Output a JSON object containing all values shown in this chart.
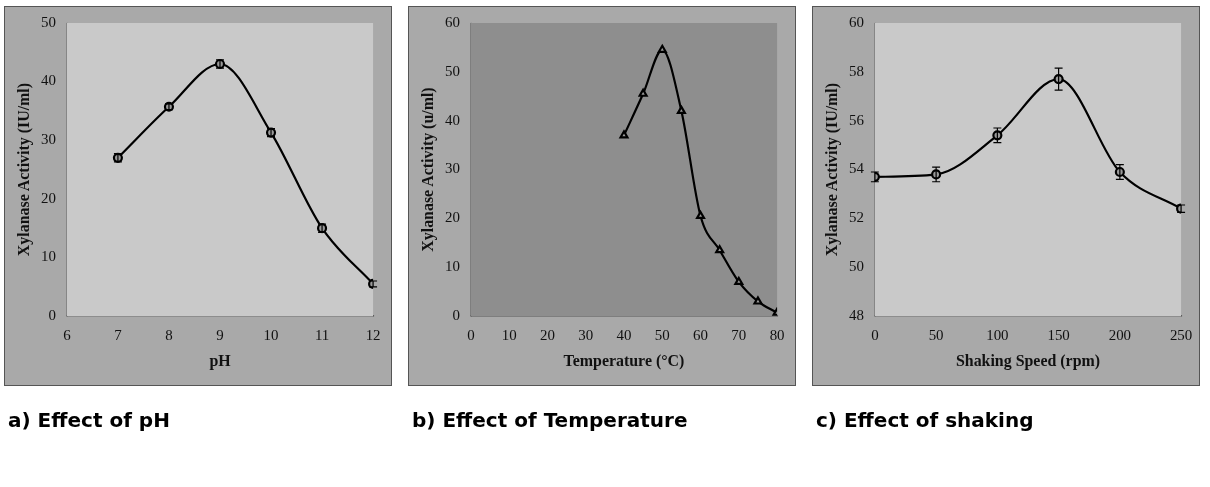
{
  "chart_data": [
    {
      "type": "line",
      "title": "a) Effect of pH",
      "xlabel": "pH",
      "ylabel": "Xylanase Activity (IU/ml)",
      "x": [
        7,
        8,
        9,
        10,
        11,
        12
      ],
      "series": [
        {
          "color": "#000000",
          "values": [
            27,
            35.7,
            43,
            31.3,
            15,
            5.5
          ],
          "errors": [
            0.7,
            0.5,
            0.7,
            0.7,
            0.7,
            0.5
          ]
        }
      ],
      "xlim": [
        6,
        12
      ],
      "xticks": [
        6,
        7,
        8,
        9,
        10,
        11,
        12
      ],
      "ylim": [
        0,
        50
      ],
      "yticks": [
        0,
        10,
        20,
        30,
        40,
        50
      ],
      "grid": false,
      "legend": false,
      "marker": "circle",
      "line_style": "solid"
    },
    {
      "type": "line",
      "title": "b) Effect of Temperature",
      "xlabel": "Temperature (°C)",
      "ylabel": "Xylanase Activity (u/ml)",
      "x": [
        40,
        45,
        50,
        55,
        60,
        65,
        70,
        75,
        80
      ],
      "series": [
        {
          "color": "#000000",
          "values": [
            37,
            45.5,
            54.5,
            42,
            20.5,
            13.5,
            7,
            3,
            0.7
          ]
        }
      ],
      "xlim": [
        0,
        80
      ],
      "xticks": [
        0,
        10,
        20,
        30,
        40,
        50,
        60,
        70,
        80
      ],
      "ylim": [
        0,
        60
      ],
      "yticks": [
        0,
        10,
        20,
        30,
        40,
        50,
        60
      ],
      "grid": false,
      "legend": false,
      "marker": "triangle",
      "line_style": "solid"
    },
    {
      "type": "line",
      "title": "c) Effect of shaking",
      "xlabel": "Shaking Speed (rpm)",
      "ylabel": "Xylanase Activity (IU/ml)",
      "x": [
        0,
        50,
        100,
        150,
        200,
        250
      ],
      "series": [
        {
          "color": "#000000",
          "values": [
            53.7,
            53.8,
            55.4,
            57.7,
            53.9,
            52.4
          ],
          "errors": [
            0.2,
            0.3,
            0.3,
            0.45,
            0.3,
            0.15
          ]
        }
      ],
      "xlim": [
        0,
        250
      ],
      "xticks": [
        0,
        50,
        100,
        150,
        200,
        250
      ],
      "ylim": [
        48,
        60
      ],
      "yticks": [
        48,
        50,
        52,
        54,
        56,
        58,
        60
      ],
      "grid": false,
      "legend": false,
      "marker": "circle",
      "line_style": "solid"
    }
  ]
}
